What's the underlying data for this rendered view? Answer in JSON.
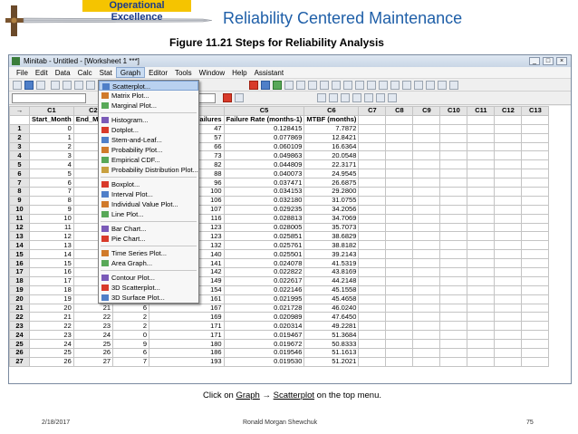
{
  "header": {
    "banner": "Operational Excellence",
    "slide_title": "Reliability Centered Maintenance",
    "figure_title": "Figure 11.21  Steps for Reliability Analysis"
  },
  "window": {
    "title": "Minitab - Untitled - [Worksheet 1 ***]"
  },
  "menubar": [
    "File",
    "Edit",
    "Data",
    "Calc",
    "Stat",
    "Graph",
    "Editor",
    "Tools",
    "Window",
    "Help",
    "Assistant"
  ],
  "graph_menu": [
    {
      "label": "Scatterplot...",
      "icon": "scatterplot-icon",
      "selected": true
    },
    {
      "label": "Matrix Plot...",
      "icon": "matrix-plot-icon"
    },
    {
      "label": "Marginal Plot...",
      "icon": "marginal-plot-icon"
    },
    {
      "sep": true
    },
    {
      "label": "Histogram...",
      "icon": "histogram-icon"
    },
    {
      "label": "Dotplot...",
      "icon": "dotplot-icon"
    },
    {
      "label": "Stem-and-Leaf...",
      "icon": "stem-leaf-icon"
    },
    {
      "label": "Probability Plot...",
      "icon": "probability-plot-icon"
    },
    {
      "label": "Empirical CDF...",
      "icon": "empirical-cdf-icon"
    },
    {
      "label": "Probability Distribution Plot...",
      "icon": "distribution-plot-icon"
    },
    {
      "sep": true
    },
    {
      "label": "Boxplot...",
      "icon": "boxplot-icon"
    },
    {
      "label": "Interval Plot...",
      "icon": "interval-plot-icon"
    },
    {
      "label": "Individual Value Plot...",
      "icon": "individual-value-plot-icon"
    },
    {
      "label": "Line Plot...",
      "icon": "line-plot-icon"
    },
    {
      "sep": true
    },
    {
      "label": "Bar Chart...",
      "icon": "bar-chart-icon"
    },
    {
      "label": "Pie Chart...",
      "icon": "pie-chart-icon"
    },
    {
      "sep": true
    },
    {
      "label": "Time Series Plot...",
      "icon": "time-series-icon"
    },
    {
      "label": "Area Graph...",
      "icon": "area-graph-icon"
    },
    {
      "sep": true
    },
    {
      "label": "Contour Plot...",
      "icon": "contour-plot-icon"
    },
    {
      "label": "3D Scatterplot...",
      "icon": "scatter-3d-icon"
    },
    {
      "label": "3D Surface Plot...",
      "icon": "surface-3d-icon"
    }
  ],
  "worksheet": {
    "columns": [
      "C1",
      "C2",
      "C3",
      "C4",
      "C5",
      "C6",
      "C7",
      "C8",
      "C9",
      "C10",
      "C11",
      "C12",
      "C13"
    ],
    "names": [
      "Start_Month",
      "End_Mond",
      "",
      "re Number of Failures",
      "Failure Rate (months-1)",
      "MTBF (months)",
      "",
      "",
      "",
      "",
      "",
      "",
      ""
    ],
    "rows": [
      [
        "1",
        "0",
        "",
        "",
        "47",
        "0.128415",
        "7.7872"
      ],
      [
        "2",
        "1",
        "",
        "",
        "57",
        "0.077869",
        "12.8421"
      ],
      [
        "3",
        "2",
        "",
        "",
        "66",
        "0.060109",
        "16.6364"
      ],
      [
        "4",
        "3",
        "",
        "",
        "73",
        "0.049863",
        "20.0548"
      ],
      [
        "5",
        "4",
        "",
        "",
        "82",
        "0.044809",
        "22.3171"
      ],
      [
        "6",
        "5",
        "",
        "",
        "88",
        "0.040073",
        "24.9545"
      ],
      [
        "7",
        "6",
        "",
        "",
        "96",
        "0.037471",
        "26.6875"
      ],
      [
        "8",
        "7",
        "",
        "",
        "100",
        "0.034153",
        "29.2800"
      ],
      [
        "9",
        "8",
        "",
        "",
        "106",
        "0.032180",
        "31.0755"
      ],
      [
        "10",
        "9",
        "1",
        "",
        "107",
        "0.029235",
        "34.2056"
      ],
      [
        "11",
        "10",
        "1",
        "",
        "116",
        "0.028813",
        "34.7069"
      ],
      [
        "12",
        "11",
        "1",
        "",
        "123",
        "0.028005",
        "35.7073"
      ],
      [
        "13",
        "12",
        "1",
        "",
        "123",
        "0.025851",
        "38.6829"
      ],
      [
        "14",
        "13",
        "1",
        "",
        "132",
        "0.025761",
        "38.8182"
      ],
      [
        "15",
        "14",
        "1",
        "",
        "140",
        "0.025501",
        "39.2143"
      ],
      [
        "16",
        "15",
        "1",
        "",
        "141",
        "0.024078",
        "41.5319"
      ],
      [
        "17",
        "16",
        "1",
        "",
        "142",
        "0.022822",
        "43.8169"
      ],
      [
        "18",
        "17",
        "1",
        "",
        "149",
        "0.022617",
        "44.2148"
      ],
      [
        "19",
        "18",
        "19",
        "5",
        "154",
        "0.022146",
        "45.1558"
      ],
      [
        "20",
        "19",
        "20",
        "7",
        "161",
        "0.021995",
        "45.4658"
      ],
      [
        "21",
        "20",
        "21",
        "6",
        "167",
        "0.021728",
        "46.0240"
      ],
      [
        "22",
        "21",
        "22",
        "2",
        "169",
        "0.020989",
        "47.6450"
      ],
      [
        "23",
        "22",
        "23",
        "2",
        "171",
        "0.020314",
        "49.2281"
      ],
      [
        "24",
        "23",
        "24",
        "0",
        "171",
        "0.019467",
        "51.3684"
      ],
      [
        "25",
        "24",
        "25",
        "9",
        "180",
        "0.019672",
        "50.8333"
      ],
      [
        "26",
        "25",
        "26",
        "6",
        "186",
        "0.019546",
        "51.1613"
      ],
      [
        "27",
        "26",
        "27",
        "7",
        "193",
        "0.019530",
        "51.2021"
      ]
    ]
  },
  "caption": {
    "prefix": "Click on ",
    "graph": "Graph",
    "arrow": " → ",
    "scatter": "Scatterplot",
    "suffix": " on the top menu."
  },
  "footer": {
    "date": "2/18/2017",
    "author": "Ronald Morgan Shewchuk",
    "page": "75"
  }
}
